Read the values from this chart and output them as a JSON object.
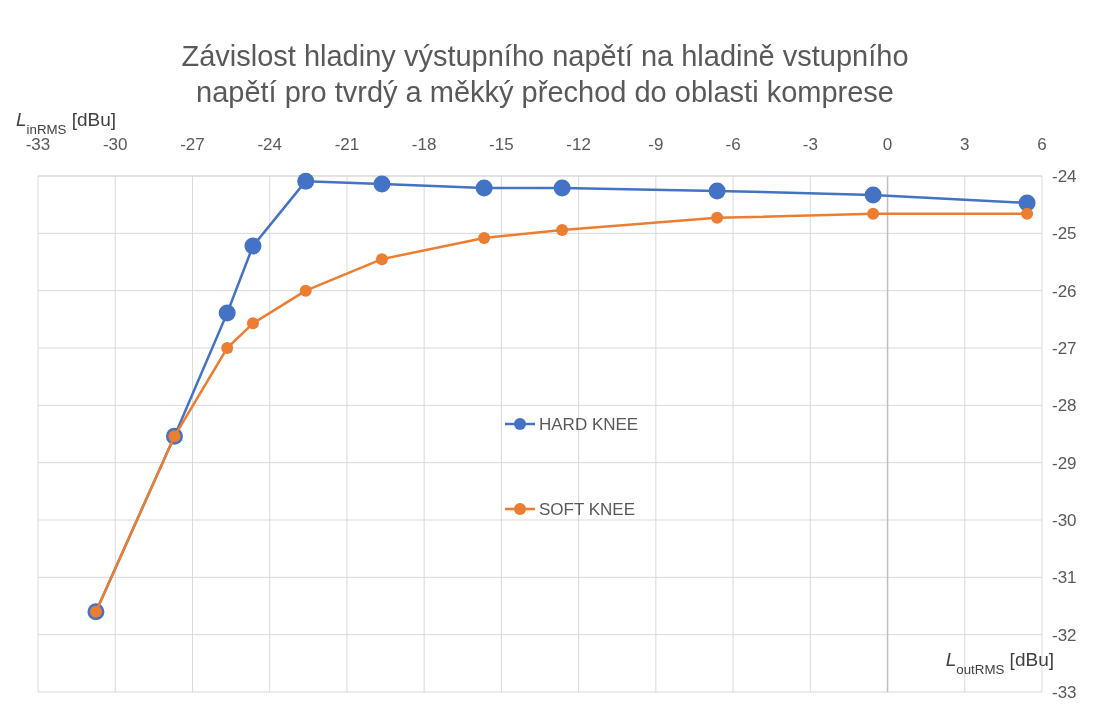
{
  "chart_data": {
    "type": "line",
    "title": "Závislost hladiny výstupního napětí na hladině vstupního napětí pro tvrdý a měkký přechod do oblasti komprese",
    "xlabel": "L$_{outRMS}$ [dBu]",
    "ylabel": "L$_{inRMS}$ [dBu]",
    "x": [
      -30.75,
      -27.7,
      -25.65,
      -24.65,
      -22.6,
      -19.64,
      -15.67,
      -12.64,
      -6.62,
      -0.56,
      5.42
    ],
    "series": [
      {
        "name": "HARD KNEE",
        "color": "#4472c4",
        "values": [
          -31.6,
          -28.54,
          -26.39,
          -25.22,
          -24.09,
          -24.14,
          -24.21,
          -24.21,
          -24.26,
          -24.33,
          -24.47
        ]
      },
      {
        "name": "SOFT KNEE",
        "color": "#ed7d31",
        "values": [
          -31.6,
          -28.54,
          -27.0,
          -26.57,
          -26.0,
          -25.45,
          -25.08,
          -24.94,
          -24.73,
          -24.66,
          -24.66
        ]
      }
    ],
    "xlim": [
      -33,
      6
    ],
    "xticks": [
      -33,
      -30,
      -27,
      -24,
      -21,
      -18,
      -15,
      -12,
      -9,
      -6,
      -3,
      0,
      3,
      6
    ],
    "ylim": [
      -33,
      -24
    ],
    "yticks": [
      -33,
      -32,
      -31,
      -30,
      -29,
      -28,
      -27,
      -26,
      -25,
      -24
    ],
    "ref_lines": [
      {
        "axis": "x",
        "value": 0,
        "color": "#bfbfbf"
      }
    ],
    "grid": true,
    "legend": "center",
    "marker": "circle",
    "line_style": "solid"
  }
}
